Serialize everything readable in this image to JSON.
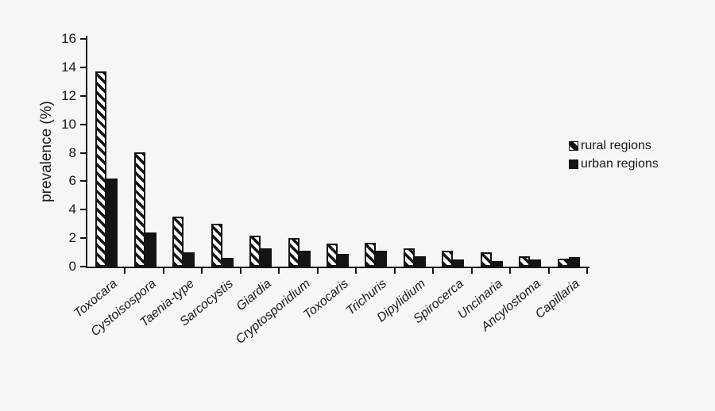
{
  "chart_data": {
    "type": "bar",
    "title": "",
    "xlabel": "",
    "ylabel": "prevalence (%)",
    "ylim": [
      0,
      16
    ],
    "yticks": [
      0,
      2,
      4,
      6,
      8,
      10,
      12,
      14,
      16
    ],
    "grid": false,
    "legend_position": "right-middle",
    "categories": [
      "Toxocara",
      "Cystoisospora",
      "Taenia-type",
      "Sarcocystis",
      "Giardia",
      "Cryptosporidium",
      "Toxocaris",
      "Trichuris",
      "Dipylidium",
      "Spirocerca",
      "Uncinaria",
      "Ancylostoma",
      "Capillaria"
    ],
    "series": [
      {
        "name": "rural regions",
        "style": "hatched-diagonal",
        "values": [
          13.7,
          8.0,
          3.5,
          3.0,
          2.2,
          2.0,
          1.6,
          1.7,
          1.3,
          1.1,
          1.0,
          0.7,
          0.55
        ]
      },
      {
        "name": "urban regions",
        "style": "solid-black",
        "values": [
          6.2,
          2.4,
          1.0,
          0.6,
          1.3,
          1.1,
          0.9,
          1.1,
          0.7,
          0.5,
          0.4,
          0.5,
          0.65
        ]
      }
    ]
  },
  "colors": {
    "bar": "#141414",
    "background": "#f6f6f6",
    "text": "#1a1a1a"
  }
}
